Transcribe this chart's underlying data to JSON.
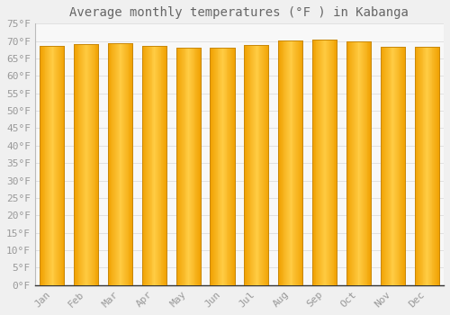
{
  "title": "Average monthly temperatures (°F ) in Kabanga",
  "months": [
    "Jan",
    "Feb",
    "Mar",
    "Apr",
    "May",
    "Jun",
    "Jul",
    "Aug",
    "Sep",
    "Oct",
    "Nov",
    "Dec"
  ],
  "values": [
    68.5,
    69.1,
    69.3,
    68.5,
    68.2,
    68.2,
    68.9,
    70.2,
    70.3,
    69.8,
    68.4,
    68.3
  ],
  "bar_color_center": "#FFCC44",
  "bar_color_edge": "#F0A000",
  "bar_edge_color": "#C8880A",
  "background_color": "#F0F0F0",
  "plot_bg_color": "#F8F8F8",
  "grid_color": "#DDDDDD",
  "text_color": "#999999",
  "title_color": "#666666",
  "ylim": [
    0,
    75
  ],
  "yticks": [
    0,
    5,
    10,
    15,
    20,
    25,
    30,
    35,
    40,
    45,
    50,
    55,
    60,
    65,
    70,
    75
  ],
  "title_fontsize": 10,
  "tick_fontsize": 8
}
